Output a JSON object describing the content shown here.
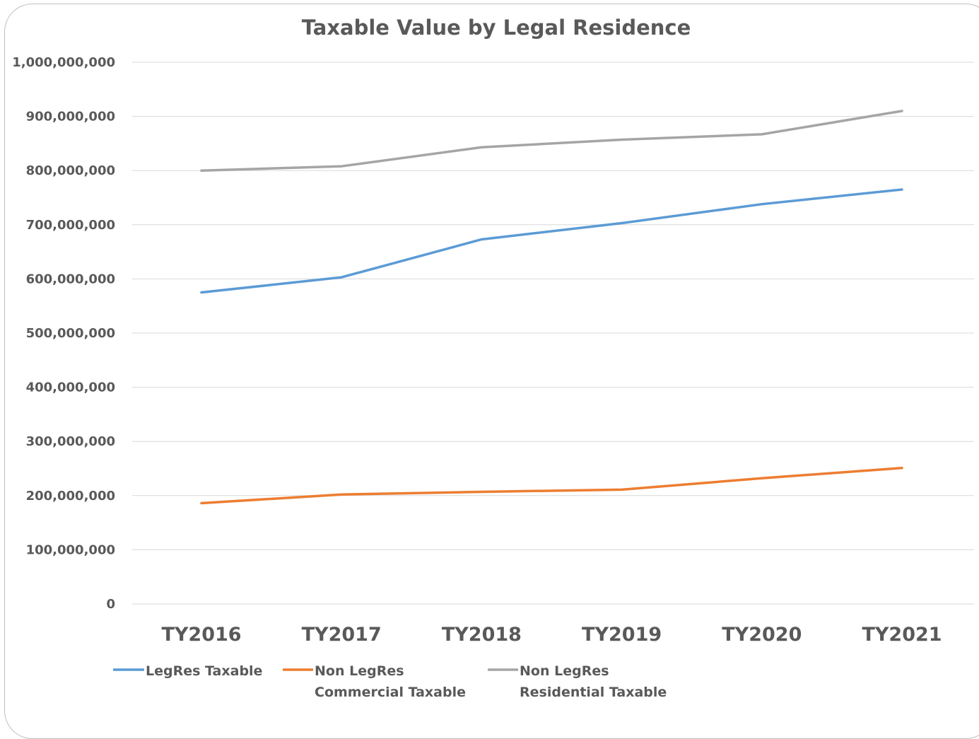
{
  "chart_data": {
    "type": "line",
    "title": "Taxable Value by Legal Residence",
    "xlabel": "",
    "ylabel": "",
    "categories": [
      "TY2016",
      "TY2017",
      "TY2018",
      "TY2019",
      "TY2020",
      "TY2021"
    ],
    "ylim": [
      0,
      1000000000
    ],
    "yticks": [
      0,
      100000000,
      200000000,
      300000000,
      400000000,
      500000000,
      600000000,
      700000000,
      800000000,
      900000000,
      1000000000
    ],
    "ytick_labels": [
      "0",
      "100,000,000",
      "200,000,000",
      "300,000,000",
      "400,000,000",
      "500,000,000",
      "600,000,000",
      "700,000,000",
      "800,000,000",
      "900,000,000",
      "1,000,000,000"
    ],
    "grid": true,
    "legend_position": "bottom",
    "series": [
      {
        "name": "LegRes Taxable",
        "legend_lines": [
          "LegRes Taxable"
        ],
        "color": "#5b9bd5",
        "values": [
          575000000,
          603000000,
          673000000,
          703000000,
          738000000,
          765000000
        ]
      },
      {
        "name": "Non LegRes Commercial Taxable",
        "legend_lines": [
          "Non LegRes",
          "Commercial Taxable"
        ],
        "color": "#ed7d31",
        "values": [
          186000000,
          202000000,
          207000000,
          211000000,
          232000000,
          251000000
        ]
      },
      {
        "name": "Non LegRes Residential Taxable",
        "legend_lines": [
          "Non LegRes",
          "Residential Taxable"
        ],
        "color": "#a5a5a5",
        "values": [
          800000000,
          808000000,
          843000000,
          857000000,
          867000000,
          910000000
        ]
      }
    ]
  }
}
